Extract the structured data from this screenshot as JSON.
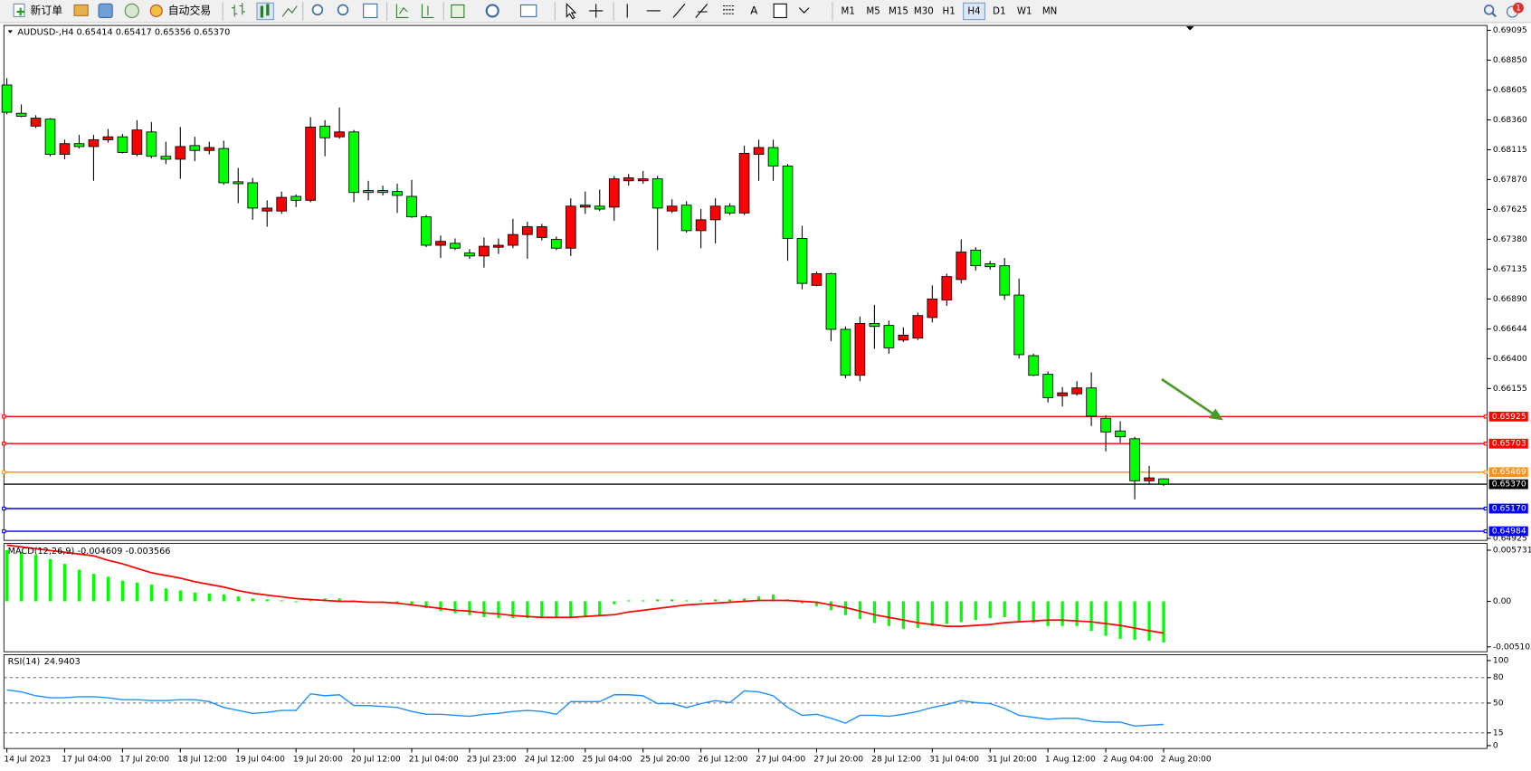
{
  "toolbar": {
    "new_order": "新订单",
    "auto_trade": "自动交易",
    "text_tool": "A",
    "timeframes": [
      "M1",
      "M5",
      "M15",
      "M30",
      "H1",
      "H4",
      "D1",
      "W1",
      "MN"
    ],
    "active_timeframe": "H4",
    "badge": "1"
  },
  "chart_data": [
    {
      "type": "candlestick",
      "title": "AUDUSD-,H4  0.65414 0.65417 0.65356 0.65370",
      "colors": {
        "up": "#ff0000",
        "down": "#00ff00"
      },
      "ylim": [
        0.64909,
        0.69135
      ],
      "yticks": [
        0.69095,
        {
          "value": 0.6885,
          "label": "0.68850"
        },
        0.68605,
        {
          "value": 0.6836,
          "label": "0.68360"
        },
        0.68115,
        {
          "value": 0.6787,
          "label": "0.67870"
        },
        0.67625,
        {
          "value": 0.6738,
          "label": "0.67380"
        },
        0.67135,
        {
          "value": 0.6689,
          "label": "0.66890"
        },
        0.66644,
        {
          "value": 0.664,
          "label": "0.66400"
        },
        0.66155,
        0.64925
      ],
      "levels": [
        {
          "value": 0.65925,
          "label": "0.65925",
          "color": "#ff0000"
        },
        {
          "value": 0.65703,
          "label": "0.65703",
          "color": "#ff0000"
        },
        {
          "value": 0.65469,
          "label": "0.65469",
          "color": "#f7941d"
        },
        {
          "value": 0.6537,
          "label": "0.65370",
          "color": "#000000"
        },
        {
          "value": 0.6517,
          "label": "0.65170",
          "color": "#0000ff"
        },
        {
          "value": 0.64984,
          "label": "0.64984",
          "color": "#0000ff"
        }
      ],
      "categories": [
        "14 Jul 2023",
        null,
        null,
        null,
        "17 Jul 04:00",
        null,
        null,
        null,
        "17 Jul 20:00",
        null,
        null,
        null,
        "18 Jul 12:00",
        null,
        null,
        null,
        "19 Jul 04:00",
        null,
        null,
        null,
        "19 Jul 20:00",
        null,
        null,
        null,
        "20 Jul 12:00",
        null,
        null,
        null,
        "21 Jul 04:00",
        null,
        null,
        null,
        "23 Jul 23:00",
        null,
        null,
        null,
        "24 Jul 12:00",
        null,
        null,
        null,
        "25 Jul 04:00",
        null,
        null,
        null,
        "25 Jul 20:00",
        null,
        null,
        null,
        "26 Jul 12:00",
        null,
        null,
        null,
        "27 Jul 04:00",
        null,
        null,
        null,
        "27 Jul 20:00",
        null,
        null,
        null,
        "28 Jul 12:00",
        null,
        null,
        null,
        "31 Jul 04:00",
        null,
        null,
        null,
        "31 Jul 20:00",
        null,
        null,
        null,
        "1 Aug 12:00",
        null,
        null,
        null,
        "2 Aug 04:00",
        null,
        null,
        null,
        "2 Aug 20:00"
      ],
      "candles": [
        [
          0.68646,
          0.68702,
          0.68406,
          0.68422
        ],
        [
          0.68414,
          0.68486,
          0.68382,
          0.6839
        ],
        [
          0.68309,
          0.68398,
          0.68293,
          0.68374
        ],
        [
          0.68366,
          0.68374,
          0.68061,
          0.68077
        ],
        [
          0.68077,
          0.68197,
          0.68037,
          0.68165
        ],
        [
          0.68165,
          0.68237,
          0.68125,
          0.68141
        ],
        [
          0.68141,
          0.68237,
          0.6786,
          0.68197
        ],
        [
          0.68197,
          0.68285,
          0.68173,
          0.68221
        ],
        [
          0.68221,
          0.68245,
          0.68085,
          0.68093
        ],
        [
          0.68077,
          0.68358,
          0.68061,
          0.68277
        ],
        [
          0.68261,
          0.68342,
          0.68045,
          0.68061
        ],
        [
          0.68061,
          0.68181,
          0.67997,
          0.68037
        ],
        [
          0.68037,
          0.68301,
          0.67876,
          0.68141
        ],
        [
          0.68149,
          0.68221,
          0.68021,
          0.68109
        ],
        [
          0.68109,
          0.68181,
          0.68077,
          0.68133
        ],
        [
          0.68125,
          0.68189,
          0.67828,
          0.67844
        ],
        [
          0.67852,
          0.67965,
          0.67676,
          0.67836
        ],
        [
          0.67844,
          0.67884,
          0.6754,
          0.67636
        ],
        [
          0.67612,
          0.677,
          0.67483,
          0.67636
        ],
        [
          0.67612,
          0.67772,
          0.67588,
          0.67724
        ],
        [
          0.67732,
          0.67748,
          0.67644,
          0.677
        ],
        [
          0.677,
          0.68382,
          0.67684,
          0.68301
        ],
        [
          0.68309,
          0.68358,
          0.68061,
          0.68213
        ],
        [
          0.68221,
          0.68462,
          0.68205,
          0.68261
        ],
        [
          0.68261,
          0.68277,
          0.67684,
          0.67764
        ],
        [
          0.6778,
          0.6786,
          0.677,
          0.67764
        ],
        [
          0.6778,
          0.6782,
          0.6774,
          0.67764
        ],
        [
          0.67772,
          0.67836,
          0.67596,
          0.6774
        ],
        [
          0.67732,
          0.67868,
          0.67556,
          0.67564
        ],
        [
          0.67564,
          0.6758,
          0.67315,
          0.67331
        ],
        [
          0.67331,
          0.67411,
          0.67227,
          0.67363
        ],
        [
          0.67347,
          0.67387,
          0.67291,
          0.67307
        ],
        [
          0.67267,
          0.67299,
          0.67219,
          0.67243
        ],
        [
          0.67243,
          0.67395,
          0.67147,
          0.67323
        ],
        [
          0.67315,
          0.67387,
          0.67259,
          0.67331
        ],
        [
          0.67331,
          0.67548,
          0.67307,
          0.67419
        ],
        [
          0.67419,
          0.67524,
          0.67219,
          0.67483
        ],
        [
          0.67395,
          0.67507,
          0.67371,
          0.67483
        ],
        [
          0.67379,
          0.67403,
          0.67291,
          0.67307
        ],
        [
          0.67307,
          0.67716,
          0.67243,
          0.67652
        ],
        [
          0.67644,
          0.67772,
          0.67588,
          0.6766
        ],
        [
          0.67652,
          0.67788,
          0.67612,
          0.67628
        ],
        [
          0.67644,
          0.679,
          0.67532,
          0.67876
        ],
        [
          0.6786,
          0.67916,
          0.6782,
          0.67884
        ],
        [
          0.6786,
          0.67941,
          0.67836,
          0.67876
        ],
        [
          0.67876,
          0.679,
          0.67291,
          0.67636
        ],
        [
          0.67612,
          0.67708,
          0.67596,
          0.67652
        ],
        [
          0.6766,
          0.67692,
          0.67435,
          0.67451
        ],
        [
          0.67451,
          0.67628,
          0.67307,
          0.6754
        ],
        [
          0.6754,
          0.67716,
          0.67347,
          0.67652
        ],
        [
          0.67652,
          0.67676,
          0.6758,
          0.67596
        ],
        [
          0.67596,
          0.68149,
          0.6758,
          0.68085
        ],
        [
          0.68077,
          0.68197,
          0.6786,
          0.68133
        ],
        [
          0.68133,
          0.68197,
          0.6786,
          0.67981
        ],
        [
          0.67981,
          0.67997,
          0.67203,
          0.67387
        ],
        [
          0.67387,
          0.67491,
          0.6697,
          0.67018
        ],
        [
          0.67002,
          0.67114,
          0.66994,
          0.67098
        ],
        [
          0.67098,
          0.67106,
          0.66545,
          0.66641
        ],
        [
          0.66641,
          0.66665,
          0.6624,
          0.66264
        ],
        [
          0.66264,
          0.66746,
          0.66216,
          0.66689
        ],
        [
          0.66689,
          0.66842,
          0.66481,
          0.66665
        ],
        [
          0.66673,
          0.66713,
          0.66441,
          0.66489
        ],
        [
          0.66553,
          0.66657,
          0.66537,
          0.66593
        ],
        [
          0.66569,
          0.66778,
          0.66553,
          0.66754
        ],
        [
          0.66738,
          0.67002,
          0.66697,
          0.6689
        ],
        [
          0.66882,
          0.67098,
          0.66834,
          0.67074
        ],
        [
          0.6705,
          0.67379,
          0.67018,
          0.67275
        ],
        [
          0.67291,
          0.67315,
          0.67123,
          0.67163
        ],
        [
          0.67179,
          0.67203,
          0.67131,
          0.67155
        ],
        [
          0.67163,
          0.67227,
          0.66882,
          0.66922
        ],
        [
          0.66922,
          0.67058,
          0.66401,
          0.66433
        ],
        [
          0.66425,
          0.66441,
          0.66256,
          0.66264
        ],
        [
          0.66272,
          0.66296,
          0.6604,
          0.6608
        ],
        [
          0.66096,
          0.66168,
          0.66008,
          0.6612
        ],
        [
          0.66112,
          0.66216,
          0.66096,
          0.6616
        ],
        [
          0.6616,
          0.66288,
          0.65847,
          0.65928
        ],
        [
          0.65911,
          0.65936,
          0.65639,
          0.65799
        ],
        [
          0.65807,
          0.65887,
          0.65711,
          0.65759
        ],
        [
          0.65743,
          0.65759,
          0.65246,
          0.65398
        ],
        [
          0.65398,
          0.65519,
          0.65366,
          0.65422
        ],
        [
          0.65414,
          0.65417,
          0.65356,
          0.6537
        ]
      ]
    },
    {
      "type": "macd",
      "title": "MACD(12,26,9)",
      "ylim": [
        -0.005654,
        0.006504
      ],
      "yticks": [
        0.005731,
        {
          "value": 0,
          "label": "0.00"
        },
        -0.005102
      ],
      "series": [
        {
          "style": "histogram",
          "color": "#00ff00",
          "values": [
            0.00575,
            0.00553,
            0.00519,
            0.00475,
            0.0042,
            0.00354,
            0.00309,
            0.00276,
            0.00232,
            0.0021,
            0.00188,
            0.00144,
            0.00122,
            0.00099,
            0.00088,
            0.00077,
            0.00055,
            0.00033,
            0.00022,
            0.00011,
            -0.00011,
            0.00011,
            0.00033,
            0.00033,
            0.00011,
            -6e-05,
            -0.00011,
            -0.00022,
            -0.00044,
            -0.00077,
            -0.0011,
            -0.00133,
            -0.00155,
            -0.00177,
            -0.00188,
            -0.00188,
            -0.00188,
            -0.00188,
            -0.00188,
            -0.00188,
            -0.00177,
            -0.00166,
            -0.00033,
            0.00011,
            0.00011,
            0.00022,
            0.00022,
            0.00011,
            0.00011,
            0.00022,
            0.00022,
            0.00033,
            0.00055,
            0.00077,
            0.00022,
            -0.00022,
            -0.00055,
            -0.00099,
            -0.00155,
            -0.00199,
            -0.00243,
            -0.00276,
            -0.00309,
            -0.00298,
            -0.00276,
            -0.00254,
            -0.00232,
            -0.0021,
            -0.00188,
            -0.00177,
            -0.00221,
            -0.00243,
            -0.00276,
            -0.00276,
            -0.00276,
            -0.00332,
            -0.00387,
            -0.0042,
            -0.00431,
            -0.00442,
            -0.004609
          ]
        },
        {
          "style": "line",
          "color": "#ff0000",
          "values": [
            0.0063,
            0.0061,
            0.0059,
            0.0057,
            0.0055,
            0.0053,
            0.0051,
            0.0046,
            0.0042,
            0.0037,
            0.0032,
            0.0029,
            0.0026,
            0.0022,
            0.0019,
            0.0016,
            0.0012,
            0.0009,
            0.0007,
            0.0005,
            0.0003,
            0.0002,
            0.0001,
            0,
            0,
            -0.0001,
            -0.0001,
            -0.0002,
            -0.0004,
            -0.0006,
            -0.0008,
            -0.001,
            -0.0011,
            -0.0013,
            -0.0014,
            -0.0016,
            -0.0017,
            -0.0018,
            -0.0018,
            -0.0018,
            -0.0017,
            -0.0016,
            -0.0015,
            -0.0012,
            -0.001,
            -0.0008,
            -0.0006,
            -0.0004,
            -0.0003,
            -0.0002,
            -0.0001,
            0,
            0.0001,
            0.0001,
            0.0001,
            0,
            -0.0001,
            -0.0004,
            -0.0007,
            -0.0011,
            -0.0015,
            -0.0018,
            -0.0021,
            -0.0024,
            -0.0026,
            -0.0028,
            -0.0028,
            -0.0027,
            -0.0026,
            -0.0024,
            -0.0023,
            -0.0022,
            -0.0021,
            -0.0021,
            -0.0022,
            -0.0023,
            -0.0025,
            -0.0027,
            -0.003,
            -0.0033,
            -0.003566
          ]
        }
      ]
    },
    {
      "type": "line",
      "title": "RSI(14)",
      "ylim": [
        -3.4,
        106.9
      ],
      "yticks": [
        100,
        80,
        50,
        15,
        0
      ],
      "levels": [
        80,
        50,
        15
      ],
      "series": [
        {
          "color": "#1e90ff",
          "values": [
            65.5,
            63.2,
            58.6,
            56.3,
            56.3,
            57.5,
            57.5,
            56.3,
            54.0,
            54.0,
            52.9,
            52.9,
            54.0,
            54.0,
            51.7,
            44.8,
            41.4,
            37.9,
            39.1,
            41.4,
            41.4,
            60.9,
            58.6,
            59.8,
            47.1,
            47.1,
            46.0,
            44.8,
            40.2,
            36.8,
            36.8,
            35.6,
            34.5,
            36.8,
            37.9,
            40.2,
            41.4,
            40.2,
            36.8,
            51.7,
            51.7,
            51.7,
            59.8,
            59.8,
            58.6,
            49.4,
            49.4,
            44.8,
            49.4,
            52.9,
            50.6,
            64.4,
            63.2,
            58.6,
            44.8,
            35.6,
            36.8,
            32.2,
            26.4,
            35.6,
            35.6,
            34.5,
            36.8,
            40.2,
            44.8,
            48.3,
            52.9,
            50.6,
            49.4,
            43.7,
            35.6,
            33.3,
            31.0,
            32.2,
            32.2,
            28.7,
            27.6,
            27.6,
            23.0,
            24.1,
            24.9403
          ]
        }
      ]
    }
  ]
}
